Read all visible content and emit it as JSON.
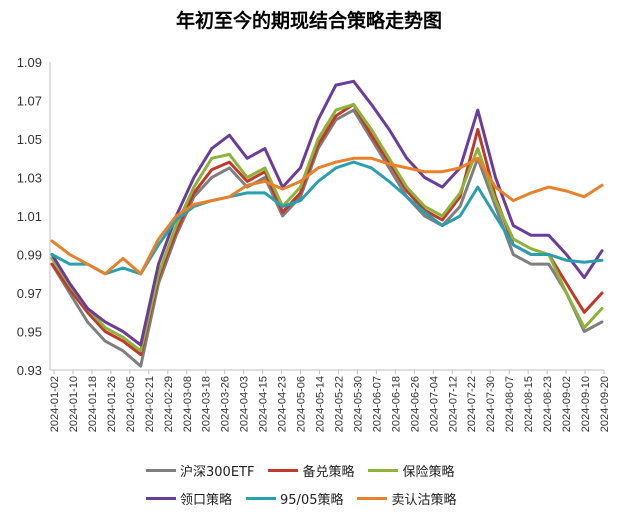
{
  "chart_data": {
    "type": "line",
    "title": "年初至今的期现结合策略走势图",
    "xlabel": "",
    "ylabel": "",
    "ylim": [
      0.93,
      1.09
    ],
    "yticks": [
      "0.93",
      "0.95",
      "0.97",
      "0.99",
      "1.01",
      "1.03",
      "1.05",
      "1.07",
      "1.09"
    ],
    "grid": false,
    "legend_position": "bottom",
    "x_tick_labels": [
      "2024-01-02",
      "2024-01-10",
      "2024-01-18",
      "2024-01-26",
      "2024-02-05",
      "2024-02-21",
      "2024-02-29",
      "2024-03-08",
      "2024-03-18",
      "2024-03-26",
      "2024-04-03",
      "2024-04-15",
      "2024-04-23",
      "2024-05-06",
      "2024-05-14",
      "2024-05-22",
      "2024-05-30",
      "2024-06-07",
      "2024-06-18",
      "2024-06-26",
      "2024-07-04",
      "2024-07-12",
      "2024-07-22",
      "2024-07-30",
      "2024-08-07",
      "2024-08-15",
      "2024-08-23",
      "2024-09-02",
      "2024-09-10",
      "2024-09-20"
    ],
    "series": [
      {
        "name": "沪深300ETF",
        "color": "#7f7f7f",
        "values": [
          0.985,
          0.97,
          0.955,
          0.945,
          0.94,
          0.932,
          0.975,
          1.0,
          1.02,
          1.03,
          1.035,
          1.025,
          1.03,
          1.01,
          1.02,
          1.045,
          1.06,
          1.065,
          1.05,
          1.035,
          1.02,
          1.01,
          1.005,
          1.015,
          1.04,
          1.015,
          0.99,
          0.985,
          0.985,
          0.97,
          0.95,
          0.955
        ]
      },
      {
        "name": "备兑策略",
        "color": "#c0392b",
        "values": [
          0.985,
          0.972,
          0.96,
          0.95,
          0.945,
          0.938,
          0.978,
          1.002,
          1.022,
          1.034,
          1.038,
          1.028,
          1.033,
          1.012,
          1.022,
          1.047,
          1.062,
          1.068,
          1.052,
          1.038,
          1.023,
          1.013,
          1.008,
          1.02,
          1.055,
          1.02,
          0.995,
          0.99,
          0.99,
          0.975,
          0.96,
          0.97
        ]
      },
      {
        "name": "保险策略",
        "color": "#8db339",
        "values": [
          0.988,
          0.974,
          0.962,
          0.952,
          0.947,
          0.94,
          0.98,
          1.005,
          1.025,
          1.04,
          1.042,
          1.03,
          1.035,
          1.015,
          1.025,
          1.05,
          1.065,
          1.068,
          1.055,
          1.04,
          1.025,
          1.015,
          1.01,
          1.022,
          1.045,
          1.018,
          0.998,
          0.993,
          0.99,
          0.97,
          0.952,
          0.962
        ]
      },
      {
        "name": "领口策略",
        "color": "#6a3d9a",
        "values": [
          0.99,
          0.975,
          0.962,
          0.955,
          0.95,
          0.943,
          0.985,
          1.01,
          1.03,
          1.045,
          1.052,
          1.04,
          1.045,
          1.025,
          1.035,
          1.06,
          1.078,
          1.08,
          1.068,
          1.055,
          1.04,
          1.03,
          1.025,
          1.035,
          1.065,
          1.03,
          1.005,
          1.0,
          1.0,
          0.99,
          0.978,
          0.992
        ]
      },
      {
        "name": "95/05策略",
        "color": "#2a9fb0",
        "values": [
          0.99,
          0.985,
          0.985,
          0.98,
          0.983,
          0.98,
          0.995,
          1.008,
          1.015,
          1.018,
          1.02,
          1.022,
          1.022,
          1.015,
          1.018,
          1.028,
          1.035,
          1.038,
          1.035,
          1.028,
          1.02,
          1.012,
          1.005,
          1.01,
          1.025,
          1.01,
          0.995,
          0.99,
          0.99,
          0.987,
          0.986,
          0.987
        ]
      },
      {
        "name": "卖认沽策略",
        "color": "#e8812a",
        "values": [
          0.997,
          0.99,
          0.985,
          0.98,
          0.988,
          0.98,
          0.998,
          1.01,
          1.016,
          1.018,
          1.02,
          1.026,
          1.028,
          1.024,
          1.028,
          1.035,
          1.038,
          1.04,
          1.04,
          1.037,
          1.035,
          1.033,
          1.033,
          1.035,
          1.04,
          1.025,
          1.018,
          1.022,
          1.025,
          1.023,
          1.02,
          1.026
        ]
      }
    ]
  }
}
